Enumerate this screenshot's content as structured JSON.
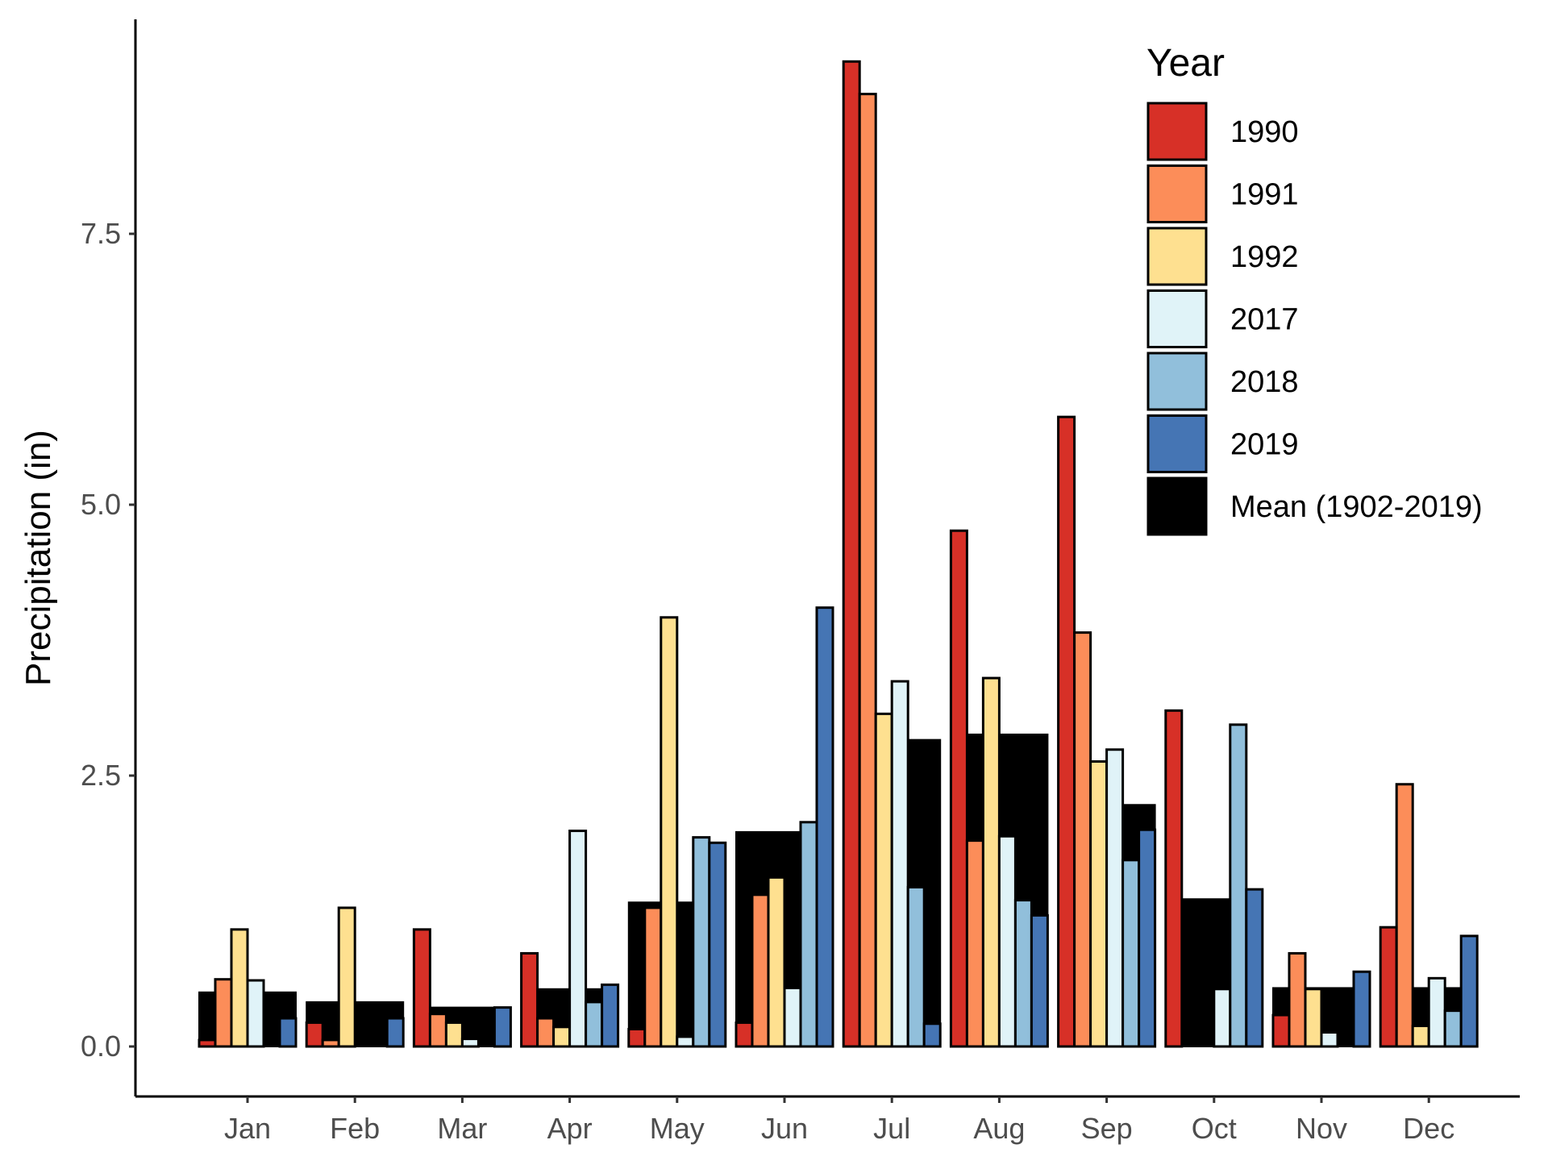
{
  "chart_data": {
    "type": "bar",
    "title": "",
    "xlabel": "",
    "ylabel": "Precipitation (in)",
    "ylim": [
      -0.45,
      9.7
    ],
    "yticks": [
      0.0,
      2.5,
      5.0,
      7.5
    ],
    "ytick_labels": [
      "0.0",
      "2.5",
      "5.0",
      "7.5"
    ],
    "grid": false,
    "legend": {
      "title": "Year",
      "placement": "top-right",
      "entries": [
        "1990",
        "1991",
        "1992",
        "2017",
        "2018",
        "2019",
        "Mean (1902-2019)"
      ]
    },
    "categories": [
      "Jan",
      "Feb",
      "Mar",
      "Apr",
      "May",
      "Jun",
      "Jul",
      "Aug",
      "Sep",
      "Oct",
      "Nov",
      "Dec"
    ],
    "colors": {
      "1990": "#d73027",
      "1991": "#fc8d59",
      "1992": "#fee090",
      "2017": "#e0f3f8",
      "2018": "#91bfdb",
      "2019": "#4575b4",
      "Mean (1902-2019)": "#000000"
    },
    "mean_series": {
      "name": "Mean (1902-2019)",
      "values": [
        0.5,
        0.41,
        0.36,
        0.53,
        1.33,
        1.98,
        2.83,
        2.88,
        2.23,
        1.36,
        0.54,
        0.54
      ]
    },
    "series": [
      {
        "name": "1990",
        "values": [
          0.06,
          0.22,
          1.08,
          0.86,
          0.16,
          0.22,
          9.09,
          4.76,
          5.81,
          3.1,
          0.29,
          1.1
        ]
      },
      {
        "name": "1991",
        "values": [
          0.62,
          0.06,
          0.3,
          0.26,
          1.28,
          1.4,
          8.79,
          1.9,
          3.82,
          0.0,
          0.86,
          2.42
        ]
      },
      {
        "name": "1992",
        "values": [
          1.08,
          1.28,
          0.22,
          0.18,
          3.96,
          1.56,
          3.07,
          3.4,
          2.63,
          0.0,
          0.53,
          0.19
        ]
      },
      {
        "name": "2017",
        "values": [
          0.61,
          0.0,
          0.07,
          1.99,
          0.09,
          0.54,
          3.37,
          1.94,
          2.74,
          0.53,
          0.13,
          0.63
        ]
      },
      {
        "name": "2018",
        "values": [
          0.0,
          0.0,
          0.0,
          0.41,
          1.93,
          2.07,
          1.47,
          1.35,
          1.72,
          2.97,
          0.0,
          0.33
        ]
      },
      {
        "name": "2019",
        "values": [
          0.26,
          0.26,
          0.36,
          0.57,
          1.88,
          4.05,
          0.21,
          1.21,
          2.0,
          1.45,
          0.69,
          1.02
        ]
      }
    ]
  }
}
